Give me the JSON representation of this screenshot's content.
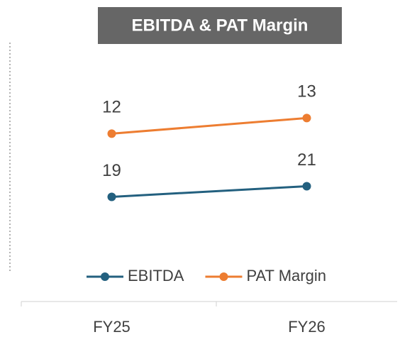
{
  "chart_data": {
    "type": "line",
    "title": "EBITDA & PAT Margin",
    "categories": [
      "FY25",
      "FY26"
    ],
    "series": [
      {
        "name": "EBITDA",
        "color": "#23607f",
        "values": [
          19,
          21
        ]
      },
      {
        "name": "PAT Margin",
        "color": "#ed7d31",
        "values": [
          12,
          13
        ],
        "axis": "y2"
      }
    ],
    "ylim": [
      0,
      50
    ],
    "y2lim": [
      1.5,
      18.5
    ],
    "legend": "bottom"
  }
}
